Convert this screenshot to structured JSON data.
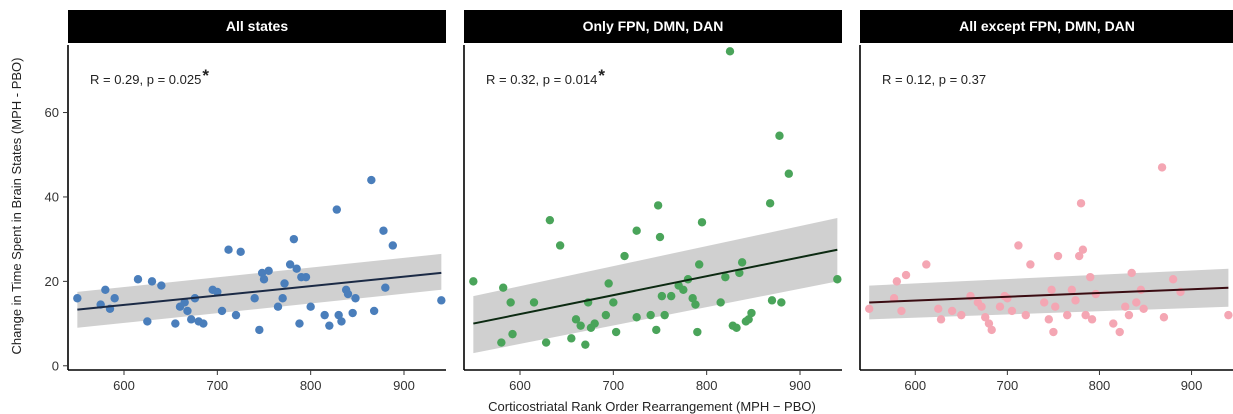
{
  "chart_data": {
    "type": "scatter",
    "xlabel": "Corticostriatal Rank Order Rearrangement (MPH − PBO)",
    "ylabel": "Change in Time Spent in Brain States (MPH - PBO)",
    "xlim": [
      540,
      945
    ],
    "ylim": [
      -1,
      76
    ],
    "xticks": [
      600,
      700,
      800,
      900
    ],
    "yticks": [
      0,
      20,
      40,
      60
    ],
    "grid": false,
    "panels": [
      {
        "title": "All states",
        "annotation": "R = 0.29, p = 0.025",
        "significance": "*",
        "point_color": "#4a7ebb",
        "line_color": "#1b2a45",
        "fit": {
          "x": [
            550,
            940
          ],
          "y": [
            13.3,
            22.0
          ]
        },
        "ci_band": {
          "x": [
            550,
            940
          ],
          "lower": [
            9.0,
            18.0
          ],
          "upper": [
            17.5,
            26.5
          ]
        },
        "points": [
          {
            "x": 550,
            "y": 16
          },
          {
            "x": 575,
            "y": 14.5
          },
          {
            "x": 580,
            "y": 18
          },
          {
            "x": 585,
            "y": 13.5
          },
          {
            "x": 590,
            "y": 16
          },
          {
            "x": 615,
            "y": 20.5
          },
          {
            "x": 625,
            "y": 10.5
          },
          {
            "x": 630,
            "y": 20
          },
          {
            "x": 640,
            "y": 19
          },
          {
            "x": 655,
            "y": 10
          },
          {
            "x": 660,
            "y": 14
          },
          {
            "x": 665,
            "y": 15
          },
          {
            "x": 668,
            "y": 13
          },
          {
            "x": 672,
            "y": 11
          },
          {
            "x": 676,
            "y": 16
          },
          {
            "x": 680,
            "y": 10.5
          },
          {
            "x": 685,
            "y": 10
          },
          {
            "x": 695,
            "y": 18
          },
          {
            "x": 700,
            "y": 17.5
          },
          {
            "x": 705,
            "y": 13
          },
          {
            "x": 712,
            "y": 27.5
          },
          {
            "x": 720,
            "y": 12
          },
          {
            "x": 725,
            "y": 27
          },
          {
            "x": 740,
            "y": 16
          },
          {
            "x": 745,
            "y": 8.5
          },
          {
            "x": 748,
            "y": 22
          },
          {
            "x": 750,
            "y": 20.5
          },
          {
            "x": 755,
            "y": 22.5
          },
          {
            "x": 765,
            "y": 14
          },
          {
            "x": 770,
            "y": 16
          },
          {
            "x": 772,
            "y": 19.5
          },
          {
            "x": 778,
            "y": 24
          },
          {
            "x": 782,
            "y": 30
          },
          {
            "x": 785,
            "y": 23
          },
          {
            "x": 788,
            "y": 10
          },
          {
            "x": 790,
            "y": 21
          },
          {
            "x": 795,
            "y": 21
          },
          {
            "x": 800,
            "y": 14
          },
          {
            "x": 815,
            "y": 12
          },
          {
            "x": 820,
            "y": 9.5
          },
          {
            "x": 828,
            "y": 37
          },
          {
            "x": 830,
            "y": 12
          },
          {
            "x": 833,
            "y": 10.5
          },
          {
            "x": 838,
            "y": 18
          },
          {
            "x": 840,
            "y": 17
          },
          {
            "x": 845,
            "y": 12.5
          },
          {
            "x": 848,
            "y": 16
          },
          {
            "x": 865,
            "y": 44
          },
          {
            "x": 868,
            "y": 13
          },
          {
            "x": 878,
            "y": 32
          },
          {
            "x": 880,
            "y": 18.5
          },
          {
            "x": 888,
            "y": 28.5
          },
          {
            "x": 940,
            "y": 15.5
          }
        ]
      },
      {
        "title": "Only FPN, DMN, DAN",
        "annotation": "R = 0.32, p = 0.014",
        "significance": "*",
        "point_color": "#4aa45a",
        "line_color": "#0c2a12",
        "fit": {
          "x": [
            550,
            940
          ],
          "y": [
            10.0,
            27.5
          ]
        },
        "ci_band": {
          "x": [
            550,
            940
          ],
          "lower": [
            3.0,
            20.0
          ],
          "upper": [
            16.5,
            35.0
          ]
        },
        "points": [
          {
            "x": 550,
            "y": 20
          },
          {
            "x": 580,
            "y": 5.5
          },
          {
            "x": 582,
            "y": 18.5
          },
          {
            "x": 590,
            "y": 15
          },
          {
            "x": 592,
            "y": 7.5
          },
          {
            "x": 615,
            "y": 15
          },
          {
            "x": 628,
            "y": 5.5
          },
          {
            "x": 632,
            "y": 34.5
          },
          {
            "x": 643,
            "y": 28.5
          },
          {
            "x": 655,
            "y": 6.5
          },
          {
            "x": 660,
            "y": 11
          },
          {
            "x": 665,
            "y": 9.5
          },
          {
            "x": 670,
            "y": 5
          },
          {
            "x": 673,
            "y": 15
          },
          {
            "x": 676,
            "y": 9
          },
          {
            "x": 680,
            "y": 10
          },
          {
            "x": 692,
            "y": 12
          },
          {
            "x": 695,
            "y": 19.5
          },
          {
            "x": 700,
            "y": 15
          },
          {
            "x": 703,
            "y": 8
          },
          {
            "x": 712,
            "y": 26
          },
          {
            "x": 725,
            "y": 32
          },
          {
            "x": 725,
            "y": 11.5
          },
          {
            "x": 740,
            "y": 12
          },
          {
            "x": 746,
            "y": 8.5
          },
          {
            "x": 748,
            "y": 38
          },
          {
            "x": 750,
            "y": 30.5
          },
          {
            "x": 752,
            "y": 16.5
          },
          {
            "x": 755,
            "y": 12
          },
          {
            "x": 762,
            "y": 16.5
          },
          {
            "x": 770,
            "y": 19
          },
          {
            "x": 775,
            "y": 18
          },
          {
            "x": 780,
            "y": 20.5
          },
          {
            "x": 785,
            "y": 16
          },
          {
            "x": 788,
            "y": 14.5
          },
          {
            "x": 790,
            "y": 8
          },
          {
            "x": 792,
            "y": 24
          },
          {
            "x": 795,
            "y": 34
          },
          {
            "x": 815,
            "y": 15
          },
          {
            "x": 820,
            "y": 21
          },
          {
            "x": 825,
            "y": 74.5
          },
          {
            "x": 828,
            "y": 9.5
          },
          {
            "x": 832,
            "y": 9
          },
          {
            "x": 835,
            "y": 22
          },
          {
            "x": 838,
            "y": 24.5
          },
          {
            "x": 842,
            "y": 10.5
          },
          {
            "x": 845,
            "y": 11
          },
          {
            "x": 848,
            "y": 12.5
          },
          {
            "x": 868,
            "y": 38.5
          },
          {
            "x": 870,
            "y": 15.5
          },
          {
            "x": 878,
            "y": 54.5
          },
          {
            "x": 880,
            "y": 15
          },
          {
            "x": 888,
            "y": 45.5
          },
          {
            "x": 940,
            "y": 20.5
          }
        ]
      },
      {
        "title": "All except FPN, DMN, DAN",
        "annotation": "R = 0.12, p = 0.37",
        "significance": "",
        "point_color": "#f4a6b3",
        "line_color": "#3a0c12",
        "fit": {
          "x": [
            550,
            940
          ],
          "y": [
            15.0,
            18.5
          ]
        },
        "ci_band": {
          "x": [
            550,
            940
          ],
          "lower": [
            11.0,
            14.0
          ],
          "upper": [
            19.0,
            23.0
          ]
        },
        "points": [
          {
            "x": 550,
            "y": 13.5
          },
          {
            "x": 577,
            "y": 16
          },
          {
            "x": 580,
            "y": 20
          },
          {
            "x": 585,
            "y": 13
          },
          {
            "x": 590,
            "y": 21.5
          },
          {
            "x": 612,
            "y": 24
          },
          {
            "x": 625,
            "y": 13.5
          },
          {
            "x": 628,
            "y": 11
          },
          {
            "x": 640,
            "y": 13
          },
          {
            "x": 650,
            "y": 12
          },
          {
            "x": 660,
            "y": 16.5
          },
          {
            "x": 668,
            "y": 15
          },
          {
            "x": 672,
            "y": 14
          },
          {
            "x": 676,
            "y": 11.5
          },
          {
            "x": 680,
            "y": 10
          },
          {
            "x": 683,
            "y": 8.5
          },
          {
            "x": 692,
            "y": 14
          },
          {
            "x": 697,
            "y": 16.5
          },
          {
            "x": 700,
            "y": 16
          },
          {
            "x": 705,
            "y": 13
          },
          {
            "x": 712,
            "y": 28.5
          },
          {
            "x": 720,
            "y": 12
          },
          {
            "x": 725,
            "y": 24
          },
          {
            "x": 740,
            "y": 15
          },
          {
            "x": 745,
            "y": 11
          },
          {
            "x": 748,
            "y": 18
          },
          {
            "x": 750,
            "y": 8
          },
          {
            "x": 752,
            "y": 14
          },
          {
            "x": 755,
            "y": 26
          },
          {
            "x": 765,
            "y": 12
          },
          {
            "x": 770,
            "y": 18
          },
          {
            "x": 774,
            "y": 15.5
          },
          {
            "x": 778,
            "y": 26
          },
          {
            "x": 780,
            "y": 38.5
          },
          {
            "x": 782,
            "y": 27.5
          },
          {
            "x": 785,
            "y": 12
          },
          {
            "x": 790,
            "y": 21
          },
          {
            "x": 792,
            "y": 11
          },
          {
            "x": 796,
            "y": 17
          },
          {
            "x": 815,
            "y": 10
          },
          {
            "x": 822,
            "y": 8
          },
          {
            "x": 828,
            "y": 14
          },
          {
            "x": 832,
            "y": 12
          },
          {
            "x": 835,
            "y": 22
          },
          {
            "x": 840,
            "y": 15
          },
          {
            "x": 845,
            "y": 18
          },
          {
            "x": 848,
            "y": 13.5
          },
          {
            "x": 868,
            "y": 47
          },
          {
            "x": 870,
            "y": 11.5
          },
          {
            "x": 880,
            "y": 20.5
          },
          {
            "x": 888,
            "y": 17.5
          },
          {
            "x": 940,
            "y": 12
          }
        ]
      }
    ]
  }
}
